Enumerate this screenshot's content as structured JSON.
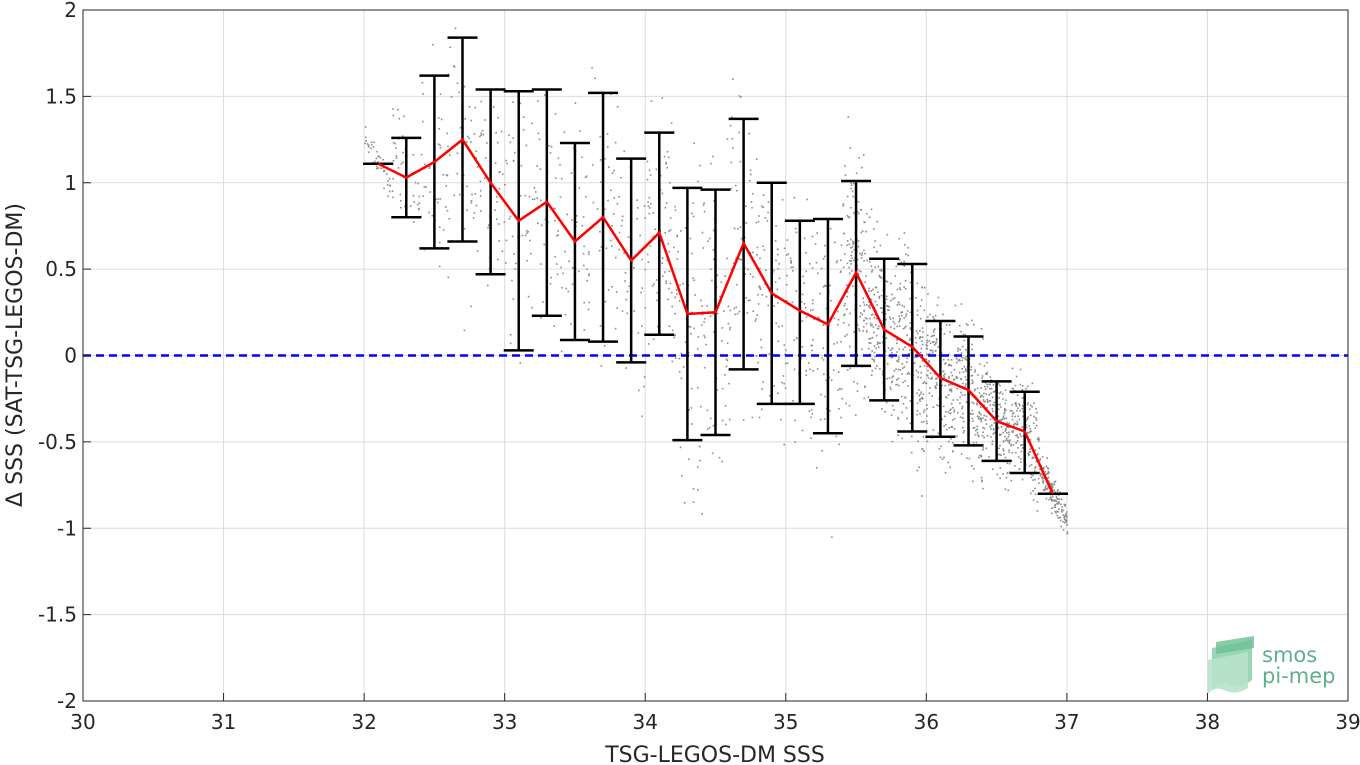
{
  "chart_data": {
    "type": "scatter",
    "xlabel": "TSG-LEGOS-DM SSS",
    "ylabel": "Δ SSS (SAT-TSG-LEGOS-DM)",
    "xlim": [
      30,
      39
    ],
    "ylim": [
      -2,
      2
    ],
    "xticks": [
      30,
      31,
      32,
      33,
      34,
      35,
      36,
      37,
      38,
      39
    ],
    "yticks": [
      2,
      1.5,
      1,
      0.5,
      0,
      -0.5,
      -1,
      -1.5,
      -2
    ],
    "ytick_labels": [
      "2",
      "1.5",
      "1",
      "0.5",
      "0",
      "-0.5",
      "-1",
      "-1.5",
      "-2"
    ],
    "grid": true,
    "series": [
      {
        "kind": "binned-mean-with-errorbars",
        "color": "#ff0000",
        "errorbar_color": "#000000",
        "x": [
          32.1,
          32.3,
          32.5,
          32.7,
          32.9,
          33.1,
          33.3,
          33.5,
          33.7,
          33.9,
          34.1,
          34.3,
          34.5,
          34.7,
          34.9,
          35.1,
          35.3,
          35.5,
          35.7,
          35.9,
          36.1,
          36.3,
          36.5,
          36.7,
          36.9
        ],
        "mean": [
          1.11,
          1.03,
          1.12,
          1.25,
          1.0,
          0.78,
          0.89,
          0.66,
          0.8,
          0.55,
          0.71,
          0.24,
          0.25,
          0.65,
          0.36,
          0.26,
          0.18,
          0.48,
          0.15,
          0.05,
          -0.13,
          -0.2,
          -0.38,
          -0.44,
          -0.8
        ],
        "lower": [
          1.11,
          0.8,
          0.62,
          0.66,
          0.47,
          0.03,
          0.23,
          0.09,
          0.08,
          -0.04,
          0.12,
          -0.49,
          -0.46,
          -0.08,
          -0.28,
          -0.28,
          -0.45,
          -0.06,
          -0.26,
          -0.44,
          -0.47,
          -0.52,
          -0.61,
          -0.68,
          -0.8
        ],
        "upper": [
          1.11,
          1.26,
          1.62,
          1.84,
          1.54,
          1.53,
          1.54,
          1.23,
          1.52,
          1.14,
          1.29,
          0.97,
          0.96,
          1.37,
          1.0,
          0.78,
          0.79,
          1.01,
          0.56,
          0.53,
          0.2,
          0.11,
          -0.15,
          -0.21,
          -0.8
        ]
      },
      {
        "kind": "reference-line",
        "y": 0,
        "color": "#0000ff",
        "style": "dashed"
      },
      {
        "kind": "scatter-cloud",
        "color": "#8c8c8c"
      }
    ],
    "logo": {
      "line1": "smos",
      "line2": "pi-mep",
      "color": "#5fb08a"
    }
  }
}
